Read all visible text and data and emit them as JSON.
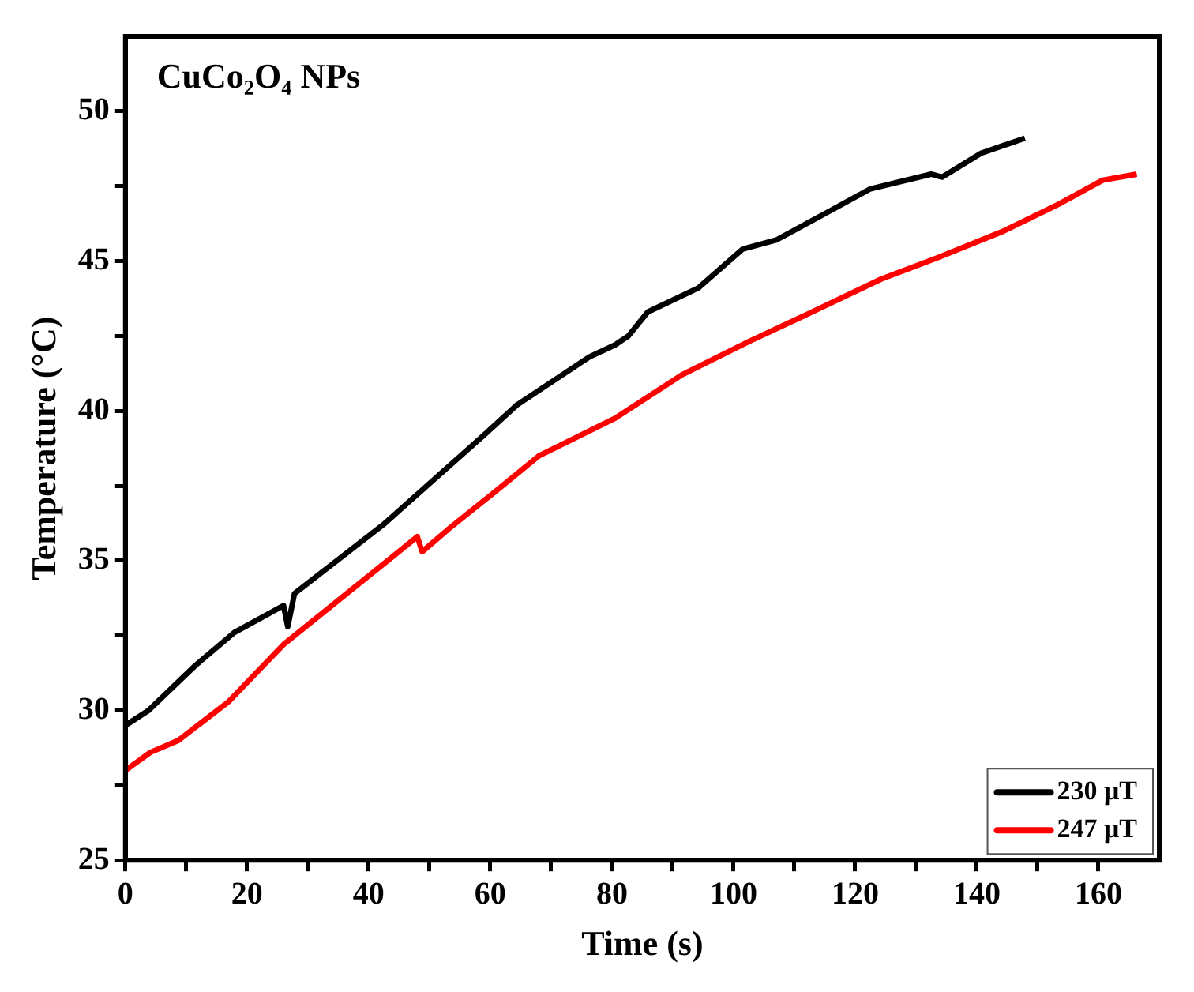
{
  "chart_data": {
    "type": "line",
    "xlabel": "Time (s)",
    "ylabel": "Temperature (°C)",
    "annotations": [
      "CuCo₂O₄ NPs"
    ],
    "xlim": [
      0,
      170
    ],
    "xticks": [
      0,
      {
        "value": 10,
        "label": null
      },
      20,
      {
        "value": 30,
        "label": null
      },
      40,
      {
        "value": 50,
        "label": null
      },
      60,
      {
        "value": 70,
        "label": null
      },
      80,
      {
        "value": 90,
        "label": null
      },
      100,
      {
        "value": 110,
        "label": null
      },
      120,
      {
        "value": 130,
        "label": null
      },
      140,
      {
        "value": 150,
        "label": null
      },
      160
    ],
    "ylim": [
      25,
      52.5
    ],
    "yticks": [
      25,
      {
        "value": 27.5,
        "label": null
      },
      30,
      {
        "value": 32.5,
        "label": null
      },
      35,
      {
        "value": 37.5,
        "label": null
      },
      40,
      {
        "value": 42.5,
        "label": null
      },
      45,
      {
        "value": 47.5,
        "label": null
      },
      50
    ],
    "grid": false,
    "legend": "bottom right",
    "marker": "none",
    "line_style": "solid",
    "series": [
      {
        "name": "230 μT",
        "color": "#000000",
        "x": [
          0,
          3.8,
          11.5,
          17.9,
          26,
          26.7,
          27.8,
          42.4,
          59,
          64.4,
          76.3,
          80.5,
          82.7,
          85.9,
          94.2,
          101.5,
          107,
          117,
          122.4,
          132.5,
          134.3,
          140.7,
          147.9
        ],
        "values": [
          29.5,
          30.0,
          31.5,
          32.6,
          33.5,
          32.8,
          33.9,
          36.2,
          39.2,
          40.2,
          41.8,
          42.2,
          42.5,
          43.3,
          44.1,
          45.4,
          45.7,
          46.8,
          47.4,
          47.9,
          47.8,
          48.6,
          49.1
        ]
      },
      {
        "name": "247 μT",
        "color": "#ff0000",
        "x": [
          0,
          4.1,
          8.7,
          17,
          26,
          37,
          48,
          48.8,
          53.4,
          60.8,
          68,
          80.5,
          91.5,
          102.4,
          112.4,
          124.3,
          133.4,
          144.4,
          153.5,
          160.7,
          166.3
        ],
        "values": [
          28.0,
          28.6,
          29.0,
          30.3,
          32.2,
          34.0,
          35.8,
          35.3,
          36.1,
          37.3,
          38.5,
          39.75,
          41.2,
          42.3,
          43.25,
          44.4,
          45.1,
          46.0,
          46.9,
          47.7,
          47.9
        ]
      }
    ]
  }
}
